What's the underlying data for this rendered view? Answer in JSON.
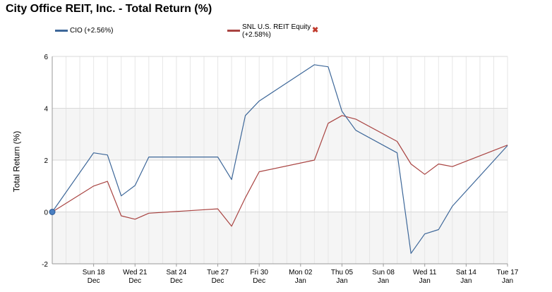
{
  "title": "City Office REIT, Inc. - Total Return (%)",
  "legend": [
    {
      "label": "CIO (+2.56%)",
      "color": "#3d6799"
    },
    {
      "label": "SNL U.S. REIT Equity (+2.58%)",
      "color": "#a94442",
      "removable": true,
      "close_icon": "close-x-icon"
    }
  ],
  "chart_data": {
    "type": "line",
    "title": "City Office REIT, Inc. - Total Return (%)",
    "xlabel": "",
    "ylabel": "Total Return (%)",
    "ylim": [
      -2,
      6
    ],
    "yticks": [
      -2,
      0,
      2,
      4,
      6
    ],
    "grid": true,
    "legend_position": "top",
    "x_ticks": [
      {
        "day": 3,
        "line1": "Sun 18",
        "line2": "Dec"
      },
      {
        "day": 6,
        "line1": "Wed 21",
        "line2": "Dec"
      },
      {
        "day": 9,
        "line1": "Sat 24",
        "line2": "Dec"
      },
      {
        "day": 12,
        "line1": "Tue 27",
        "line2": "Dec"
      },
      {
        "day": 15,
        "line1": "Fri 30",
        "line2": "Dec"
      },
      {
        "day": 18,
        "line1": "Mon 02",
        "line2": "Jan"
      },
      {
        "day": 21,
        "line1": "Thu 05",
        "line2": "Jan"
      },
      {
        "day": 24,
        "line1": "Sun 08",
        "line2": "Jan"
      },
      {
        "day": 27,
        "line1": "Wed 11",
        "line2": "Jan"
      },
      {
        "day": 30,
        "line1": "Sat 14",
        "line2": "Jan"
      },
      {
        "day": 33,
        "line1": "Tue 17",
        "line2": "Jan"
      }
    ],
    "x_range": [
      0,
      33
    ],
    "series": [
      {
        "name": "CIO (+2.56%)",
        "color": "#3d6799",
        "points": [
          [
            0,
            0.0
          ],
          [
            3,
            2.28
          ],
          [
            4,
            2.2
          ],
          [
            5,
            0.62
          ],
          [
            6,
            1.02
          ],
          [
            7,
            2.12
          ],
          [
            12,
            2.12
          ],
          [
            13,
            1.25
          ],
          [
            14,
            3.72
          ],
          [
            15,
            4.28
          ],
          [
            19,
            5.68
          ],
          [
            20,
            5.6
          ],
          [
            21,
            3.88
          ],
          [
            22,
            3.15
          ],
          [
            25,
            2.28
          ],
          [
            26,
            -1.6
          ],
          [
            27,
            -0.85
          ],
          [
            28,
            -0.68
          ],
          [
            29,
            0.22
          ],
          [
            33,
            2.56
          ]
        ]
      },
      {
        "name": "SNL U.S. REIT Equity (+2.58%)",
        "color": "#a94442",
        "points": [
          [
            0,
            0.0
          ],
          [
            3,
            1.0
          ],
          [
            4,
            1.18
          ],
          [
            5,
            -0.15
          ],
          [
            6,
            -0.28
          ],
          [
            7,
            -0.05
          ],
          [
            12,
            0.12
          ],
          [
            13,
            -0.55
          ],
          [
            14,
            0.55
          ],
          [
            15,
            1.55
          ],
          [
            19,
            2.0
          ],
          [
            20,
            3.42
          ],
          [
            21,
            3.72
          ],
          [
            22,
            3.58
          ],
          [
            25,
            2.72
          ],
          [
            26,
            1.85
          ],
          [
            27,
            1.45
          ],
          [
            28,
            1.85
          ],
          [
            29,
            1.75
          ],
          [
            33,
            2.58
          ]
        ]
      }
    ]
  }
}
